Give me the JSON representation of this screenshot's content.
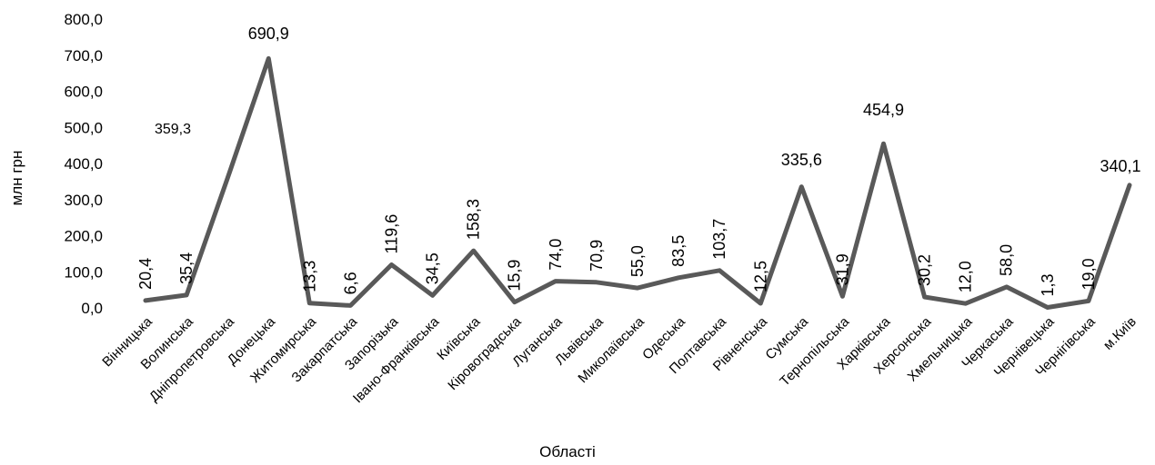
{
  "chart_data": {
    "type": "line",
    "title": "",
    "xlabel": "Області",
    "ylabel": "млн грн",
    "ylim": [
      0,
      800
    ],
    "yticks": [
      "0,0",
      "100,0",
      "200,0",
      "300,0",
      "400,0",
      "500,0",
      "600,0",
      "700,0",
      "800,0"
    ],
    "grid": false,
    "line_color": "#595959",
    "categories": [
      "Вінницька",
      "Волинська",
      "Дніпропетровська",
      "Донецька",
      "Житомирська",
      "Закарпатська",
      "Запорізька",
      "Івано-Франківська",
      "Київська",
      "Кіровоградська",
      "Луганська",
      "Львівська",
      "Миколаївська",
      "Одеська",
      "Полтавська",
      "Рівненська",
      "Сумська",
      "Тернопільська",
      "Харківська",
      "Херсонська",
      "Хмельницька",
      "Черкаська",
      "Чернівецька",
      "Чернігівська",
      "м.Київ"
    ],
    "values": [
      20.4,
      35.4,
      359.3,
      690.9,
      13.3,
      6.6,
      119.6,
      34.5,
      158.3,
      15.9,
      74.0,
      70.9,
      55.0,
      83.5,
      103.7,
      12.5,
      335.6,
      31.9,
      454.9,
      30.2,
      12.0,
      58.0,
      1.3,
      19.0,
      340.1
    ],
    "data_labels": [
      "20,4",
      "35,4",
      "359,3",
      "690,9",
      "13,3",
      "6,6",
      "119,6",
      "34,5",
      "158,3",
      "15,9",
      "74,0",
      "70,9",
      "55,0",
      "83,5",
      "103,7",
      "12,5",
      "335,6",
      "31,9",
      "454,9",
      "30,2",
      "12,0",
      "58,0",
      "1,3",
      "19,0",
      "340,1"
    ]
  }
}
